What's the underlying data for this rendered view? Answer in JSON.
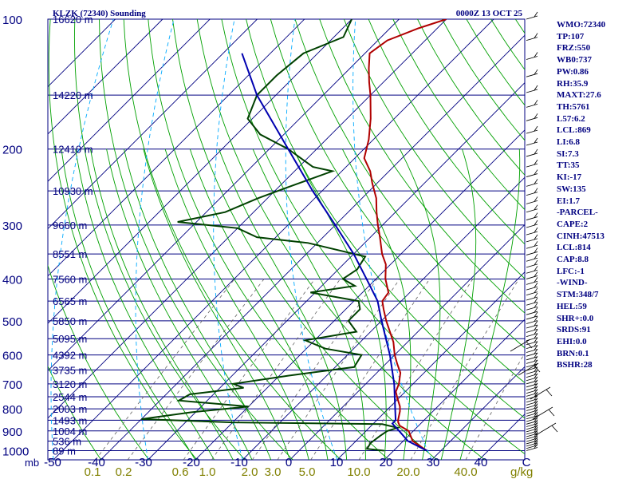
{
  "header": {
    "station": "KLZK (72340) Sounding",
    "time": "0000Z 13 OCT 25"
  },
  "stats": [
    "WMO:72340",
    "TP:107",
    "FRZ:550",
    "WB0:737",
    "PW:0.86",
    "RH:35.9",
    "MAXT:27.6",
    "TH:5761",
    "L57:6.2",
    "LCL:869",
    "LI:6.8",
    "SI:7.3",
    "TT:35",
    "KI:-17",
    "SW:135",
    "EI:1.7",
    "-PARCEL-",
    "CAPE:2",
    "CINH:47513",
    "LCL:814",
    "CAP:8.8",
    "LFC:-1",
    "-WIND-",
    "STM:348/7",
    "HEL:59",
    "SHR+:0.0",
    "SRDS:91",
    "EHI:0.0",
    "BRN:0.1",
    "BSHR:28"
  ],
  "colors": {
    "isobar": "#000080",
    "isotherm": "#000080",
    "dry_adiabat": "#00a000",
    "moist_adiabat": "#00a000",
    "mixing_ratio": "#606060",
    "mixing_ratio_labels": "#808000",
    "dashed_blue": "#00aaff",
    "temperature": "#b00000",
    "dewpoint": "#004000",
    "parcel": "#0000b0",
    "text": "#000080"
  },
  "chart_data": {
    "type": "line",
    "title": "KLZK (72340) Sounding 0000Z 13 OCT 25",
    "xlabel": "C",
    "ylabel": "mb",
    "x_units": "C",
    "y_units": "mb",
    "xlim": [
      -50,
      50
    ],
    "ylim": [
      1050,
      100
    ],
    "pressure_labels": [
      "100",
      "200",
      "300",
      "400",
      "500",
      "600",
      "700",
      "800",
      "900",
      "1000"
    ],
    "pressure_ticks": [
      100,
      200,
      300,
      400,
      500,
      600,
      700,
      800,
      900,
      1000
    ],
    "mb_label": "mb",
    "temperature_ticks": [
      "-50",
      "-40",
      "-30",
      "-20",
      "-10",
      "0",
      "10",
      "20",
      "30",
      "40",
      "C"
    ],
    "temperature_tick_values": [
      -50,
      -40,
      -30,
      -20,
      -10,
      0,
      10,
      20,
      30,
      40,
      50
    ],
    "mixing_ratio_labels": [
      "0.1",
      "0.2",
      "0.6",
      "1.0",
      "2.0",
      "3.0",
      "5.0",
      "10.0",
      "20.0",
      "40.0"
    ],
    "mixing_ratio_unit": "g/kg",
    "height_labels": [
      {
        "p": 100,
        "label": "16620 m"
      },
      {
        "p": 150,
        "label": "14220 m"
      },
      {
        "p": 200,
        "label": "12410 m"
      },
      {
        "p": 250,
        "label": "10930 m"
      },
      {
        "p": 300,
        "label": "9660 m"
      },
      {
        "p": 350,
        "label": "8551 m"
      },
      {
        "p": 400,
        "label": "7560 m"
      },
      {
        "p": 450,
        "label": "6565 m"
      },
      {
        "p": 500,
        "label": "5850 m"
      },
      {
        "p": 550,
        "label": "5095 m"
      },
      {
        "p": 600,
        "label": "4392 m"
      },
      {
        "p": 650,
        "label": "3735 m"
      },
      {
        "p": 700,
        "label": "3120 m"
      },
      {
        "p": 750,
        "label": "2544 m"
      },
      {
        "p": 800,
        "label": "2003 m"
      },
      {
        "p": 850,
        "label": "1493 m"
      },
      {
        "p": 900,
        "label": "1004 m"
      },
      {
        "p": 950,
        "label": "536 m"
      },
      {
        "p": 1000,
        "label": "89 m"
      }
    ],
    "series": [
      {
        "name": "temperature",
        "points": [
          {
            "p": 1000,
            "t": 27
          },
          {
            "p": 950,
            "t": 22
          },
          {
            "p": 900,
            "t": 19
          },
          {
            "p": 875,
            "t": 16
          },
          {
            "p": 860,
            "t": 15
          },
          {
            "p": 850,
            "t": 14.5
          },
          {
            "p": 810,
            "t": 13
          },
          {
            "p": 790,
            "t": 12
          },
          {
            "p": 760,
            "t": 10
          },
          {
            "p": 730,
            "t": 8
          },
          {
            "p": 700,
            "t": 7
          },
          {
            "p": 660,
            "t": 5
          },
          {
            "p": 630,
            "t": 2.5
          },
          {
            "p": 600,
            "t": 0
          },
          {
            "p": 560,
            "t": -3
          },
          {
            "p": 500,
            "t": -9
          },
          {
            "p": 470,
            "t": -12
          },
          {
            "p": 450,
            "t": -14
          },
          {
            "p": 430,
            "t": -14.5
          },
          {
            "p": 400,
            "t": -18
          },
          {
            "p": 370,
            "t": -21
          },
          {
            "p": 350,
            "t": -24
          },
          {
            "p": 320,
            "t": -28
          },
          {
            "p": 300,
            "t": -31
          },
          {
            "p": 280,
            "t": -34
          },
          {
            "p": 260,
            "t": -37
          },
          {
            "p": 240,
            "t": -41
          },
          {
            "p": 225,
            "t": -44
          },
          {
            "p": 210,
            "t": -48
          },
          {
            "p": 190,
            "t": -51
          },
          {
            "p": 170,
            "t": -55
          },
          {
            "p": 150,
            "t": -60
          },
          {
            "p": 140,
            "t": -63
          },
          {
            "p": 130,
            "t": -66
          },
          {
            "p": 120,
            "t": -69
          },
          {
            "p": 112,
            "t": -68
          },
          {
            "p": 105,
            "t": -64
          },
          {
            "p": 100,
            "t": -60
          }
        ]
      },
      {
        "name": "dewpoint",
        "points": [
          {
            "p": 1000,
            "t": 18
          },
          {
            "p": 990,
            "t": 14
          },
          {
            "p": 960,
            "t": 13.5
          },
          {
            "p": 925,
            "t": 14
          },
          {
            "p": 900,
            "t": 14.5
          },
          {
            "p": 885,
            "t": 16
          },
          {
            "p": 868,
            "t": 12
          },
          {
            "p": 860,
            "t": -20
          },
          {
            "p": 845,
            "t": -40
          },
          {
            "p": 815,
            "t": -31
          },
          {
            "p": 790,
            "t": -20
          },
          {
            "p": 765,
            "t": -36
          },
          {
            "p": 740,
            "t": -35
          },
          {
            "p": 715,
            "t": -25
          },
          {
            "p": 700,
            "t": -28
          },
          {
            "p": 670,
            "t": -18
          },
          {
            "p": 640,
            "t": -6
          },
          {
            "p": 600,
            "t": -7
          },
          {
            "p": 580,
            "t": -16
          },
          {
            "p": 555,
            "t": -22
          },
          {
            "p": 530,
            "t": -13
          },
          {
            "p": 500,
            "t": -17
          },
          {
            "p": 470,
            "t": -17
          },
          {
            "p": 450,
            "t": -19
          },
          {
            "p": 430,
            "t": -31
          },
          {
            "p": 415,
            "t": -23
          },
          {
            "p": 400,
            "t": -27
          },
          {
            "p": 380,
            "t": -26
          },
          {
            "p": 355,
            "t": -27
          },
          {
            "p": 330,
            "t": -42
          },
          {
            "p": 320,
            "t": -54
          },
          {
            "p": 305,
            "t": -60
          },
          {
            "p": 295,
            "t": -74
          },
          {
            "p": 280,
            "t": -66
          },
          {
            "p": 260,
            "t": -62
          },
          {
            "p": 245,
            "t": -58
          },
          {
            "p": 225,
            "t": -52
          },
          {
            "p": 220,
            "t": -57
          },
          {
            "p": 200,
            "t": -66
          },
          {
            "p": 185,
            "t": -75
          },
          {
            "p": 170,
            "t": -81
          },
          {
            "p": 150,
            "t": -84
          },
          {
            "p": 135,
            "t": -84
          },
          {
            "p": 120,
            "t": -83
          },
          {
            "p": 110,
            "t": -78
          },
          {
            "p": 100,
            "t": -80
          }
        ]
      },
      {
        "name": "parcel",
        "points": [
          {
            "p": 1000,
            "t": 27
          },
          {
            "p": 950,
            "t": 21
          },
          {
            "p": 900,
            "t": 17
          },
          {
            "p": 865,
            "t": 14
          },
          {
            "p": 850,
            "t": 14
          },
          {
            "p": 800,
            "t": 11.5
          },
          {
            "p": 700,
            "t": 6
          },
          {
            "p": 600,
            "t": -1
          },
          {
            "p": 500,
            "t": -10
          },
          {
            "p": 450,
            "t": -15
          },
          {
            "p": 400,
            "t": -22
          },
          {
            "p": 350,
            "t": -30
          },
          {
            "p": 300,
            "t": -40
          },
          {
            "p": 250,
            "t": -52
          },
          {
            "p": 200,
            "t": -66
          },
          {
            "p": 150,
            "t": -84
          },
          {
            "p": 120,
            "t": -96
          }
        ]
      }
    ]
  }
}
